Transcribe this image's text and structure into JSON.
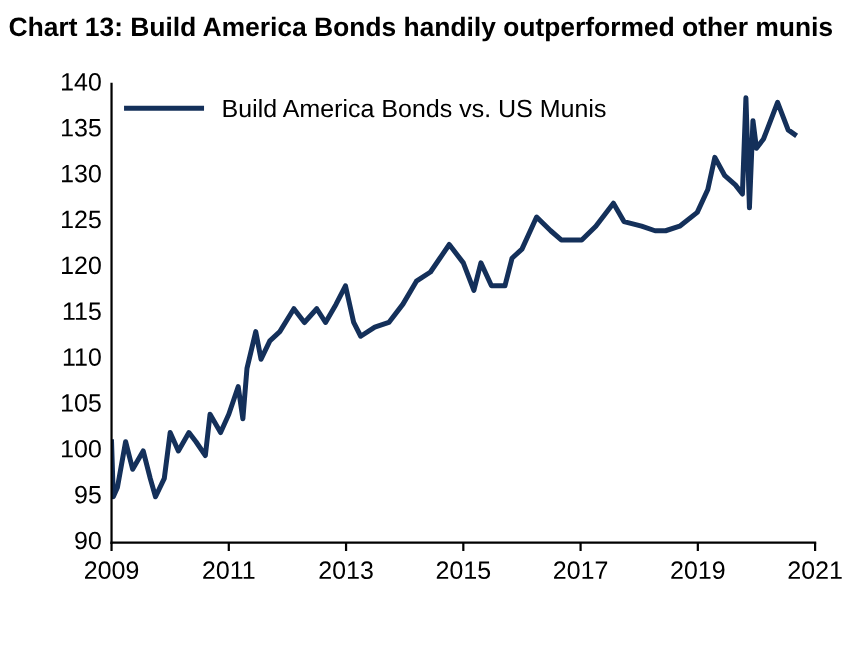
{
  "chart_data": {
    "type": "line",
    "title": "Chart 13: Build America Bonds handily outperformed other munis",
    "x": [
      2009.0,
      2009.03,
      2009.1,
      2009.24,
      2009.36,
      2009.54,
      2009.66,
      2009.75,
      2009.9,
      2010.0,
      2010.14,
      2010.32,
      2010.44,
      2010.6,
      2010.68,
      2010.86,
      2011.0,
      2011.16,
      2011.24,
      2011.31,
      2011.46,
      2011.55,
      2011.7,
      2011.87,
      2012.11,
      2012.29,
      2012.5,
      2012.65,
      2012.83,
      2012.99,
      2013.13,
      2013.25,
      2013.49,
      2013.73,
      2013.97,
      2014.2,
      2014.44,
      2014.6,
      2014.76,
      2015.0,
      2015.18,
      2015.3,
      2015.48,
      2015.71,
      2015.83,
      2016.0,
      2016.25,
      2016.49,
      2016.67,
      2017.02,
      2017.26,
      2017.56,
      2017.74,
      2018.04,
      2018.27,
      2018.45,
      2018.69,
      2018.99,
      2019.17,
      2019.29,
      2019.46,
      2019.64,
      2019.76,
      2019.82,
      2019.88,
      2019.94,
      2020.0,
      2020.12,
      2020.36,
      2020.54,
      2020.65
    ],
    "series": [
      {
        "name": "Build America Bonds vs. US Munis",
        "color": "#14305a",
        "values": [
          101,
          95,
          96,
          101,
          98,
          100,
          97,
          95,
          97,
          102,
          100,
          102,
          101,
          99.5,
          104,
          102,
          104,
          107,
          103.5,
          109,
          113,
          110,
          112,
          113,
          115.5,
          114,
          115.5,
          114,
          116,
          118,
          114,
          112.5,
          113.5,
          114,
          116,
          118.5,
          119.5,
          121,
          122.5,
          120.5,
          117.5,
          120.5,
          118,
          118,
          121,
          122,
          125.5,
          124,
          123,
          123,
          124.5,
          127,
          125,
          124.5,
          124,
          124,
          124.5,
          126,
          128.5,
          132,
          130,
          129,
          128,
          138.5,
          126.5,
          136,
          133,
          134,
          138,
          135,
          134.5
        ]
      }
    ],
    "xlim": [
      2009,
      2021
    ],
    "xticks": [
      2009,
      2011,
      2013,
      2015,
      2017,
      2019,
      2021
    ],
    "ylim": [
      90,
      140
    ],
    "yticks": [
      90,
      95,
      100,
      105,
      110,
      115,
      120,
      125,
      130,
      135,
      140
    ],
    "grid": false,
    "legend": "top left",
    "line_style": "solid",
    "marker": "none"
  }
}
